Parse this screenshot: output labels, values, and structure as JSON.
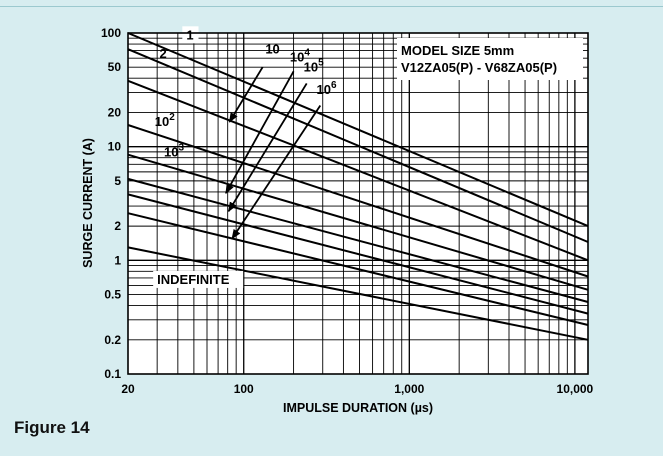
{
  "figure_label": "Figure 14",
  "chart_data": {
    "type": "line",
    "xlabel": "IMPULSE DURATION (µs)",
    "ylabel": "SURGE CURRENT (A)",
    "x_scale": "log",
    "y_scale": "log",
    "xlim": [
      20,
      12000
    ],
    "ylim": [
      0.1,
      100
    ],
    "grid": true,
    "x_ticks": [
      {
        "value": 20,
        "label": "20"
      },
      {
        "value": 100,
        "label": "100"
      },
      {
        "value": 1000,
        "label": "1,000"
      },
      {
        "value": 10000,
        "label": "10,000"
      }
    ],
    "y_ticks": [
      {
        "value": 100,
        "label": "100"
      },
      {
        "value": 50,
        "label": "50"
      },
      {
        "value": 20,
        "label": "20"
      },
      {
        "value": 10,
        "label": "10"
      },
      {
        "value": 5,
        "label": "5"
      },
      {
        "value": 2,
        "label": "2"
      },
      {
        "value": 1,
        "label": "1"
      },
      {
        "value": 0.5,
        "label": "0.5"
      },
      {
        "value": 0.2,
        "label": "0.2"
      },
      {
        "value": 0.1,
        "label": "0.1"
      }
    ],
    "annotation_box": [
      "MODEL SIZE 5mm",
      "V12ZA05(P)  - V68ZA05(P)"
    ],
    "series": [
      {
        "name": "1",
        "x": [
          20,
          12000
        ],
        "y": [
          100,
          2.0
        ]
      },
      {
        "name": "2",
        "x": [
          20,
          12000
        ],
        "y": [
          72,
          1.45
        ]
      },
      {
        "name": "10",
        "x": [
          20,
          12000
        ],
        "y": [
          38,
          1.0
        ]
      },
      {
        "name": "10^2",
        "x": [
          20,
          12000
        ],
        "y": [
          15.5,
          0.72
        ]
      },
      {
        "name": "10^3",
        "x": [
          20,
          12000
        ],
        "y": [
          8.5,
          0.55
        ]
      },
      {
        "name": "10^4",
        "x": [
          20,
          12000
        ],
        "y": [
          5.2,
          0.43
        ]
      },
      {
        "name": "10^5",
        "x": [
          20,
          12000
        ],
        "y": [
          3.8,
          0.34
        ]
      },
      {
        "name": "10^6",
        "x": [
          20,
          12000
        ],
        "y": [
          2.6,
          0.27
        ]
      },
      {
        "name": "INDEFINITE",
        "x": [
          20,
          12000
        ],
        "y": [
          1.3,
          0.2
        ]
      }
    ],
    "curve_labels": [
      {
        "text": "1",
        "x": 45,
        "y": 88,
        "box": true
      },
      {
        "text": "2",
        "x": 31,
        "y": 60,
        "box": false
      },
      {
        "text": "10",
        "x": 135,
        "y": 66,
        "box": false
      },
      {
        "text": "10",
        "sup": "2",
        "x": 29,
        "y": 15.2,
        "box": false
      },
      {
        "text": "10",
        "sup": "3",
        "x": 33,
        "y": 8.2,
        "box": false
      },
      {
        "text": "10",
        "sup": "4",
        "x": 190,
        "y": 56,
        "box": false
      },
      {
        "text": "10",
        "sup": "5",
        "x": 230,
        "y": 46,
        "box": false
      },
      {
        "text": "10",
        "sup": "6",
        "x": 275,
        "y": 29,
        "box": false
      },
      {
        "text": "INDEFINITE",
        "x": 30,
        "y": 0.62,
        "box": true
      }
    ],
    "arrows": [
      {
        "from": [
          130,
          50
        ],
        "to": [
          82,
          16.5
        ]
      },
      {
        "from": [
          200,
          46
        ],
        "to": [
          78,
          3.9
        ]
      },
      {
        "from": [
          240,
          36
        ],
        "to": [
          81,
          2.7
        ]
      },
      {
        "from": [
          290,
          23
        ],
        "to": [
          85,
          1.55
        ]
      }
    ],
    "colors": {
      "background": "#d7edf0",
      "plot_background": "#ffffff",
      "line": "#000000",
      "grid": "#000000"
    }
  }
}
